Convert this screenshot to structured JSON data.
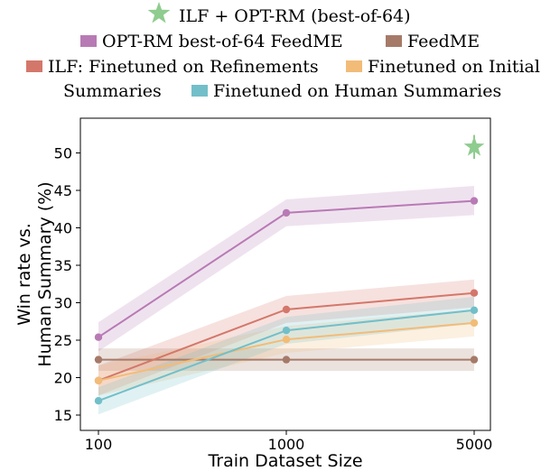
{
  "chart_data": {
    "type": "line",
    "xlabel": "Train Dataset Size",
    "ylabel_line1": "Win rate vs.",
    "ylabel_line2": "Human Summary (%)",
    "x": [
      100,
      1000,
      5000
    ],
    "x_tick_labels": [
      "100",
      "1000",
      "5000"
    ],
    "x_scale": "log",
    "ylim": [
      14,
      54
    ],
    "y_ticks": [
      15,
      20,
      25,
      30,
      35,
      40,
      45,
      50
    ],
    "grid": false,
    "legend_position": "top",
    "series": [
      {
        "name": "OPT-RM best-of-64 FeedME",
        "color": "#b87ab5",
        "values": [
          25.4,
          42.0,
          43.6
        ],
        "lower": [
          23.5,
          40.2,
          41.7
        ],
        "upper": [
          27.4,
          43.8,
          45.6
        ]
      },
      {
        "name": "FeedME",
        "color": "#a67a68",
        "values": [
          22.4,
          22.4,
          22.4
        ],
        "lower": [
          20.9,
          20.9,
          20.9
        ],
        "upper": [
          23.9,
          23.9,
          23.9
        ]
      },
      {
        "name": "ILF: Finetuned on Refinements",
        "color": "#d4776b",
        "values": [
          19.6,
          29.1,
          31.3
        ],
        "lower": [
          17.6,
          27.3,
          29.4
        ],
        "upper": [
          21.6,
          30.9,
          33.1
        ]
      },
      {
        "name": "Finetuned on Initial Summaries",
        "color": "#f2bc78",
        "values": [
          19.6,
          25.1,
          27.3
        ],
        "lower": [
          17.6,
          23.3,
          25.5
        ],
        "upper": [
          21.6,
          26.9,
          29.1
        ]
      },
      {
        "name": "Finetuned on Human Summaries",
        "color": "#72bfc9",
        "values": [
          16.9,
          26.3,
          29.0
        ],
        "lower": [
          15.1,
          24.5,
          27.2
        ],
        "upper": [
          18.7,
          28.1,
          30.8
        ]
      }
    ],
    "highlight": {
      "name": "ILF + OPT-RM (best-of-64)",
      "color": "#8fcc8f",
      "x": 5000,
      "value": 50.8,
      "err": 1.6
    }
  }
}
